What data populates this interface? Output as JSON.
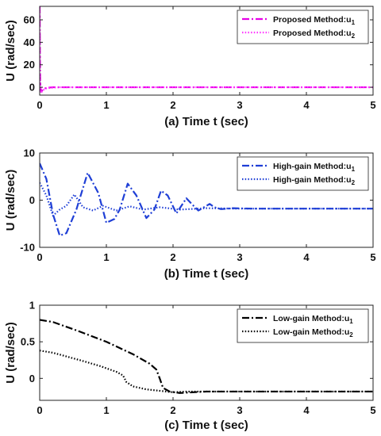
{
  "chart_data": [
    {
      "type": "line",
      "panel": "a",
      "xlabel": "(a) Time t (sec)",
      "ylabel": "U (rad/sec)",
      "xlim": [
        0,
        5
      ],
      "ylim": [
        -7,
        72
      ],
      "xticks": [
        "0",
        "1",
        "2",
        "3",
        "4",
        "5"
      ],
      "yticks": [
        "0",
        "20",
        "40",
        "60"
      ],
      "ytick_values": [
        0,
        20,
        40,
        60
      ],
      "grid": false,
      "legend_position": "top-right",
      "series": [
        {
          "name": "Proposed Method:u",
          "subscript": "1",
          "color": "#e600e6",
          "dash": "dashdot",
          "x": [
            0,
            0.004,
            0.008,
            0.02,
            0.05,
            0.1,
            0.2,
            0.3,
            0.5,
            5
          ],
          "y": [
            72,
            30,
            5,
            -4,
            -2,
            -0.5,
            0,
            0,
            0,
            0
          ]
        },
        {
          "name": "Proposed Method:u",
          "subscript": "2",
          "color": "#ff33ff",
          "dash": "dotted",
          "x": [
            0,
            0.004,
            0.008,
            0.02,
            0.05,
            0.1,
            0.2,
            0.3,
            0.5,
            5
          ],
          "y": [
            70,
            25,
            3,
            -5,
            -2.5,
            -1,
            -0.3,
            0,
            0,
            0
          ]
        }
      ]
    },
    {
      "type": "line",
      "panel": "b",
      "xlabel": "(b) Time t (sec)",
      "ylabel": "U (rad/sec)",
      "xlim": [
        0,
        5
      ],
      "ylim": [
        -10,
        10
      ],
      "xticks": [
        "0",
        "1",
        "2",
        "3",
        "4",
        "5"
      ],
      "yticks": [
        "-10",
        "0",
        "10"
      ],
      "ytick_values": [
        -10,
        0,
        10
      ],
      "grid": false,
      "legend_position": "top-right",
      "series": [
        {
          "name": "High-gain Method:u",
          "subscript": "1",
          "color": "#1f3fd6",
          "dash": "dashdot",
          "x": [
            0,
            0.1,
            0.2,
            0.3,
            0.4,
            0.55,
            0.72,
            0.88,
            1.0,
            1.12,
            1.2,
            1.32,
            1.45,
            1.6,
            1.72,
            1.82,
            1.92,
            2.05,
            2.2,
            2.28,
            2.38,
            2.55,
            2.62,
            2.72,
            2.9,
            3.2,
            5
          ],
          "y": [
            7.8,
            4.5,
            -3.0,
            -7.5,
            -7.0,
            -2.0,
            5.8,
            1.5,
            -4.8,
            -4.0,
            -2.0,
            3.5,
            1.0,
            -3.8,
            -2.0,
            2.0,
            1.0,
            -2.8,
            0.4,
            -0.8,
            -2.2,
            -0.8,
            -1.5,
            -1.9,
            -1.7,
            -1.8,
            -1.8
          ]
        },
        {
          "name": "High-gain Method:u",
          "subscript": "2",
          "color": "#1f3fd6",
          "dash": "dotted",
          "x": [
            0,
            0.1,
            0.2,
            0.3,
            0.4,
            0.52,
            0.65,
            0.8,
            0.95,
            1.15,
            1.35,
            1.55,
            1.8,
            2.1,
            2.5,
            3.0,
            5
          ],
          "y": [
            3.7,
            1.0,
            -3.3,
            -2.0,
            -1.2,
            1.2,
            -1.5,
            -2.2,
            -1.2,
            -2.2,
            -1.3,
            -2.0,
            -1.5,
            -2.0,
            -1.7,
            -1.8,
            -1.8
          ]
        }
      ]
    },
    {
      "type": "line",
      "panel": "c",
      "xlabel": "(c) Time t (sec)",
      "ylabel": "U (rad/sec)",
      "xlim": [
        0,
        5
      ],
      "ylim": [
        -0.3,
        1
      ],
      "xticks": [
        "0",
        "1",
        "2",
        "3",
        "4",
        "5"
      ],
      "yticks": [
        "0",
        "0.5",
        "1"
      ],
      "ytick_values": [
        0,
        0.5,
        1
      ],
      "grid": false,
      "legend_position": "top-right",
      "series": [
        {
          "name": "Low-gain Method:u",
          "subscript": "1",
          "color": "#000000",
          "dash": "dashdot",
          "x": [
            0,
            0.2,
            0.6,
            1.0,
            1.4,
            1.65,
            1.75,
            1.8,
            1.85,
            1.95,
            2.1,
            2.5,
            3.0,
            5
          ],
          "y": [
            0.8,
            0.77,
            0.64,
            0.5,
            0.33,
            0.2,
            0.12,
            0.0,
            -0.13,
            -0.18,
            -0.2,
            -0.18,
            -0.18,
            -0.18
          ]
        },
        {
          "name": "Low-gain Method:u",
          "subscript": "2",
          "color": "#000000",
          "dash": "dotted",
          "x": [
            0,
            0.2,
            0.6,
            0.9,
            1.15,
            1.25,
            1.3,
            1.4,
            1.6,
            1.8,
            2.0,
            2.2,
            3.0,
            5
          ],
          "y": [
            0.38,
            0.35,
            0.25,
            0.17,
            0.09,
            0.04,
            -0.05,
            -0.11,
            -0.15,
            -0.17,
            -0.19,
            -0.18,
            -0.18,
            -0.18
          ]
        }
      ]
    }
  ]
}
